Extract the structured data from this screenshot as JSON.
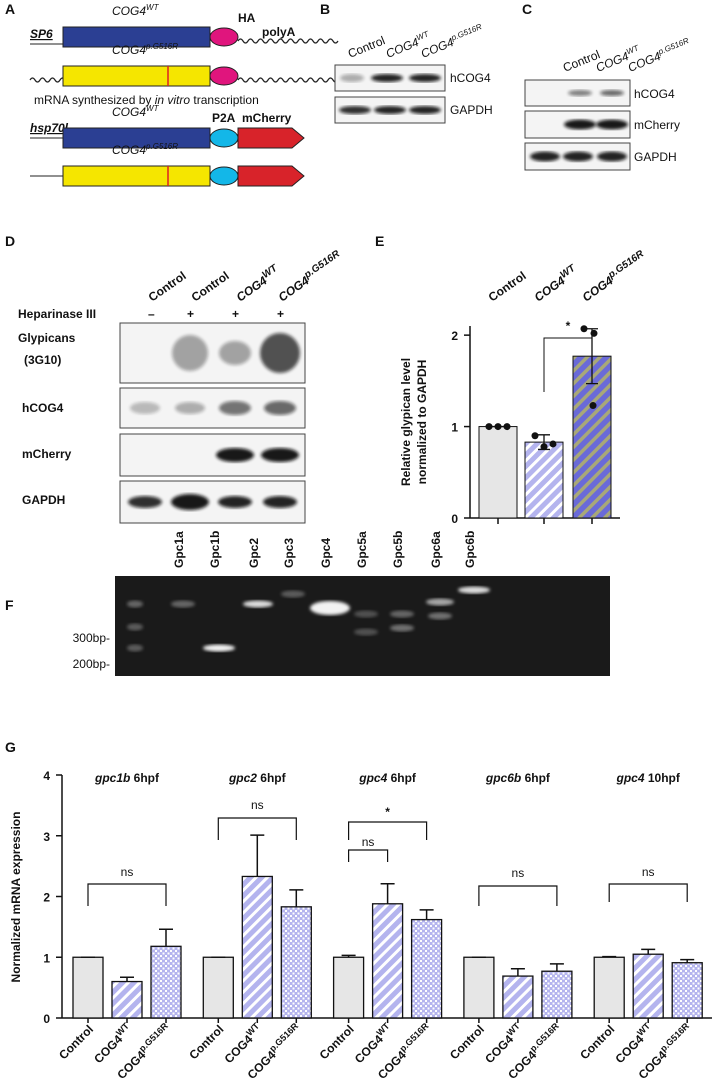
{
  "panel_labels": [
    "A",
    "B",
    "C",
    "D",
    "E",
    "F",
    "G"
  ],
  "panel_a": {
    "promoter1": "SP6",
    "gene_wt": {
      "text": "COG4",
      "sup": "WT"
    },
    "gene_mut": {
      "text": "COG4",
      "sup": "p.G516R"
    },
    "tag1": "HA",
    "tail": "polyA",
    "caption": [
      "mRNA synthesized by ",
      "in vitro",
      " transcription"
    ],
    "promoter2": "hsp70l",
    "tag2": "P2A",
    "reporter": "mCherry"
  },
  "panel_b": {
    "lanes": [
      {
        "text": "Control"
      },
      {
        "text": "COG4",
        "sup": "WT"
      },
      {
        "text": "COG4",
        "sup": "p.G516R"
      }
    ],
    "rows": [
      "hCOG4",
      "GAPDH"
    ]
  },
  "panel_c": {
    "lanes": [
      {
        "text": "Control"
      },
      {
        "text": "COG4",
        "sup": "WT"
      },
      {
        "text": "COG4",
        "sup": "p.G516R"
      }
    ],
    "rows": [
      "hCOG4",
      "mCherry",
      "GAPDH"
    ]
  },
  "panel_d": {
    "lanes": [
      {
        "text": "Control"
      },
      {
        "text": "Control"
      },
      {
        "text": "COG4",
        "sup": "WT"
      },
      {
        "text": "COG4",
        "sup": "p.G516R"
      }
    ],
    "treatment": "Heparinase III",
    "treatment_marks": [
      "–",
      "+",
      "+",
      "+"
    ],
    "rows": [
      [
        "Glypicans",
        "(3G10)"
      ],
      [
        "hCOG4"
      ],
      [
        "mCherry"
      ],
      [
        "GAPDH"
      ]
    ]
  },
  "panel_f": {
    "lanes": [
      "Gpc1a",
      "Gpc1b",
      "Gpc2",
      "Gpc3",
      "Gpc4",
      "Gpc5a",
      "Gpc5b",
      "Gpc6a",
      "Gpc6b"
    ],
    "markers": [
      "300bp-",
      "200bp-"
    ]
  },
  "chart_data": [
    {
      "type": "bar",
      "categories": [
        {
          "text": "Control"
        },
        {
          "text": "COG4",
          "sup": "WT"
        },
        {
          "text": "COG4",
          "sup": "p.G516R"
        }
      ],
      "values": [
        1,
        0.83,
        1.77
      ],
      "errors": [
        0,
        0.08,
        0.3
      ],
      "points": [
        [
          1,
          1,
          1
        ],
        [
          0.9,
          0.78,
          0.81
        ],
        [
          2.07,
          2.02,
          1.23
        ]
      ],
      "colors": [
        "#e6e6e6",
        "#b4b4ee",
        "#6a6ad8"
      ],
      "patterns": [
        "solid",
        "stripes",
        "stripes"
      ],
      "y_label": [
        "Relative glypican level",
        "normalized to GAPDH"
      ],
      "ylim": [
        0,
        2.1
      ],
      "yticks": [
        0,
        1,
        2
      ],
      "annotations": [
        "*"
      ]
    },
    {
      "type": "grouped_bar",
      "categories": [
        "gpc1b 6hpf",
        "gpc2 6hpf",
        "gpc4 6hpf",
        "gpc6b 6hpf",
        "gpc4 10hpf"
      ],
      "series": [
        {
          "name": "Control",
          "color": "#e6e6e6",
          "pattern": "solid",
          "values": [
            1,
            1,
            1,
            1,
            1
          ],
          "errors": [
            0,
            0,
            0.03,
            0,
            0.01
          ]
        },
        {
          "name": "COG4",
          "superscript": "WT",
          "color": "#b4b4ee",
          "pattern": "stripes",
          "values": [
            0.6,
            2.33,
            1.88,
            0.69,
            1.05
          ],
          "errors": [
            0.07,
            0.68,
            0.33,
            0.12,
            0.08
          ]
        },
        {
          "name": "COG4",
          "superscript": "p.G516R",
          "color": "#b4b4ee",
          "pattern": "checks",
          "values": [
            1.18,
            1.83,
            1.62,
            0.77,
            0.91
          ],
          "errors": [
            0.28,
            0.28,
            0.16,
            0.12,
            0.05
          ]
        }
      ],
      "ylim": [
        0,
        4
      ],
      "yticks": [
        0,
        1,
        2,
        3,
        4
      ],
      "y_label": "Normalized mRNA expression",
      "annotations": [
        "ns",
        "ns",
        "*",
        "ns",
        "ns",
        "ns"
      ]
    }
  ]
}
